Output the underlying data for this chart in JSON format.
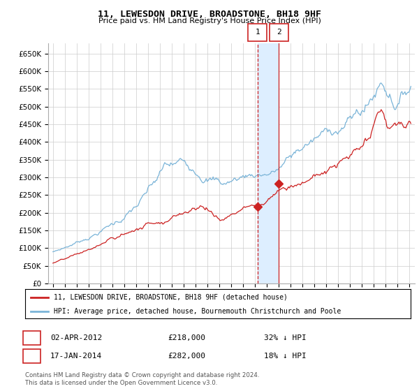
{
  "title": "11, LEWESDON DRIVE, BROADSTONE, BH18 9HF",
  "subtitle": "Price paid vs. HM Land Registry's House Price Index (HPI)",
  "ylabel_ticks": [
    "£0",
    "£50K",
    "£100K",
    "£150K",
    "£200K",
    "£250K",
    "£300K",
    "£350K",
    "£400K",
    "£450K",
    "£500K",
    "£550K",
    "£600K",
    "£650K"
  ],
  "ytick_values": [
    0,
    50000,
    100000,
    150000,
    200000,
    250000,
    300000,
    350000,
    400000,
    450000,
    500000,
    550000,
    600000,
    650000
  ],
  "ylim": [
    0,
    680000
  ],
  "hpi_color": "#7ab4d8",
  "price_color": "#cc2222",
  "marker_color": "#cc2222",
  "shade_color": "#ddeeff",
  "sale1_x": 2012.25,
  "sale1_y": 218000,
  "sale2_x": 2014.04,
  "sale2_y": 282000,
  "legend_line1": "11, LEWESDON DRIVE, BROADSTONE, BH18 9HF (detached house)",
  "legend_line2": "HPI: Average price, detached house, Bournemouth Christchurch and Poole",
  "table_row1": [
    "1",
    "02-APR-2012",
    "£218,000",
    "32% ↓ HPI"
  ],
  "table_row2": [
    "2",
    "17-JAN-2014",
    "£282,000",
    "18% ↓ HPI"
  ],
  "footer": "Contains HM Land Registry data © Crown copyright and database right 2024.\nThis data is licensed under the Open Government Licence v3.0.",
  "background_color": "#ffffff",
  "grid_color": "#cccccc",
  "xlim_left": 1994.6,
  "xlim_right": 2025.5
}
